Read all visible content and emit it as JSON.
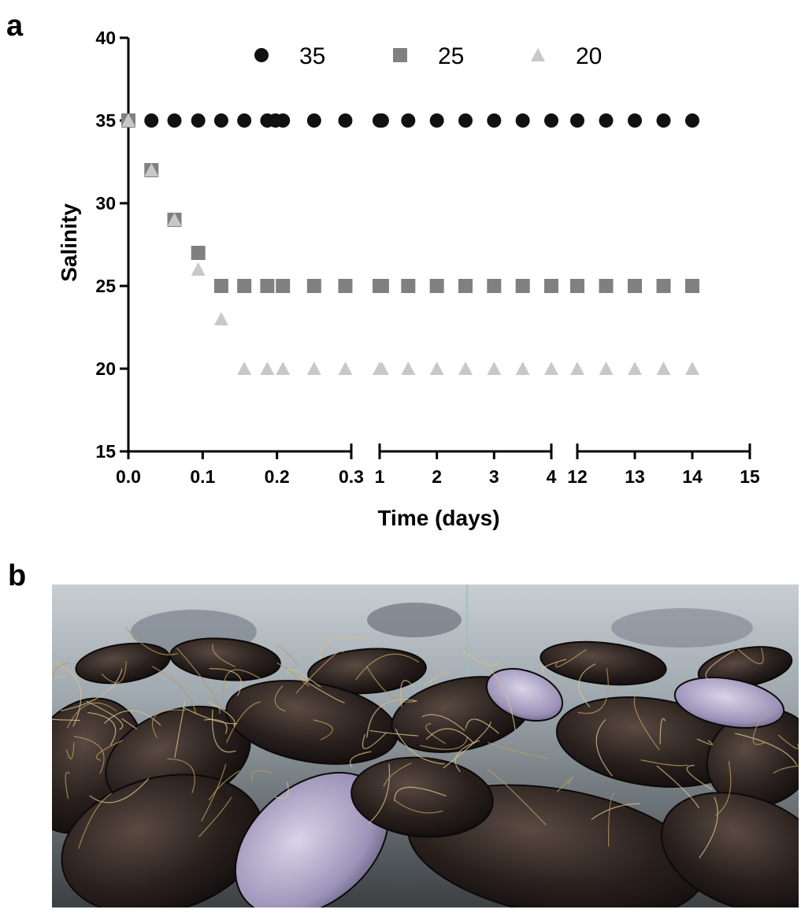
{
  "panels": {
    "a_label": "a",
    "b_label": "b"
  },
  "colors": {
    "s35": "#111111",
    "s25": "#808080",
    "s20": "#c8c8c8",
    "axis": "#000000"
  },
  "chart_data": {
    "type": "scatter",
    "xlabel": "Time (days)",
    "ylabel": "Salinity",
    "ylim": [
      15,
      40
    ],
    "yticks": [
      15,
      20,
      25,
      30,
      35,
      40
    ],
    "x_segments": [
      {
        "range": [
          0,
          0.3
        ],
        "ticks": [
          "0.0",
          "0.1",
          "0.2",
          "0.3"
        ]
      },
      {
        "range": [
          1,
          4
        ],
        "ticks": [
          "1",
          "2",
          "3",
          "4"
        ]
      },
      {
        "range": [
          12,
          15
        ],
        "ticks": [
          "12",
          "13",
          "14",
          "15"
        ]
      }
    ],
    "grid": false,
    "legend_position": "top",
    "series": [
      {
        "name": "35",
        "marker": "circle",
        "x": [
          0.0,
          0.031,
          0.062,
          0.094,
          0.125,
          0.156,
          0.187,
          0.198,
          0.208,
          0.25,
          0.292,
          1.0,
          1.04,
          1.5,
          2.0,
          2.5,
          3.0,
          3.5,
          4.0,
          12.0,
          12.5,
          13.0,
          13.5,
          14.0
        ],
        "y": [
          35,
          35,
          35,
          35,
          35,
          35,
          35,
          35,
          35,
          35,
          35,
          35,
          35,
          35,
          35,
          35,
          35,
          35,
          35,
          35,
          35,
          35,
          35,
          35
        ]
      },
      {
        "name": "25",
        "marker": "square",
        "x": [
          0.0,
          0.031,
          0.062,
          0.094,
          0.125,
          0.156,
          0.187,
          0.208,
          0.25,
          0.292,
          1.0,
          1.04,
          1.5,
          2.0,
          2.5,
          3.0,
          3.5,
          4.0,
          12.0,
          12.5,
          13.0,
          13.5,
          14.0
        ],
        "y": [
          35,
          32,
          29,
          27,
          25,
          25,
          25,
          25,
          25,
          25,
          25,
          25,
          25,
          25,
          25,
          25,
          25,
          25,
          25,
          25,
          25,
          25,
          25
        ]
      },
      {
        "name": "20",
        "marker": "triangle",
        "x": [
          0.0,
          0.031,
          0.062,
          0.094,
          0.125,
          0.156,
          0.187,
          0.208,
          0.25,
          0.292,
          1.0,
          1.04,
          1.5,
          2.0,
          2.5,
          3.0,
          3.5,
          4.0,
          12.0,
          12.5,
          13.0,
          13.5,
          14.0
        ],
        "y": [
          35,
          32,
          29,
          26,
          23,
          20,
          20,
          20,
          20,
          20,
          20,
          20,
          20,
          20,
          20,
          20,
          20,
          20,
          20,
          20,
          20,
          20,
          20
        ]
      }
    ]
  }
}
